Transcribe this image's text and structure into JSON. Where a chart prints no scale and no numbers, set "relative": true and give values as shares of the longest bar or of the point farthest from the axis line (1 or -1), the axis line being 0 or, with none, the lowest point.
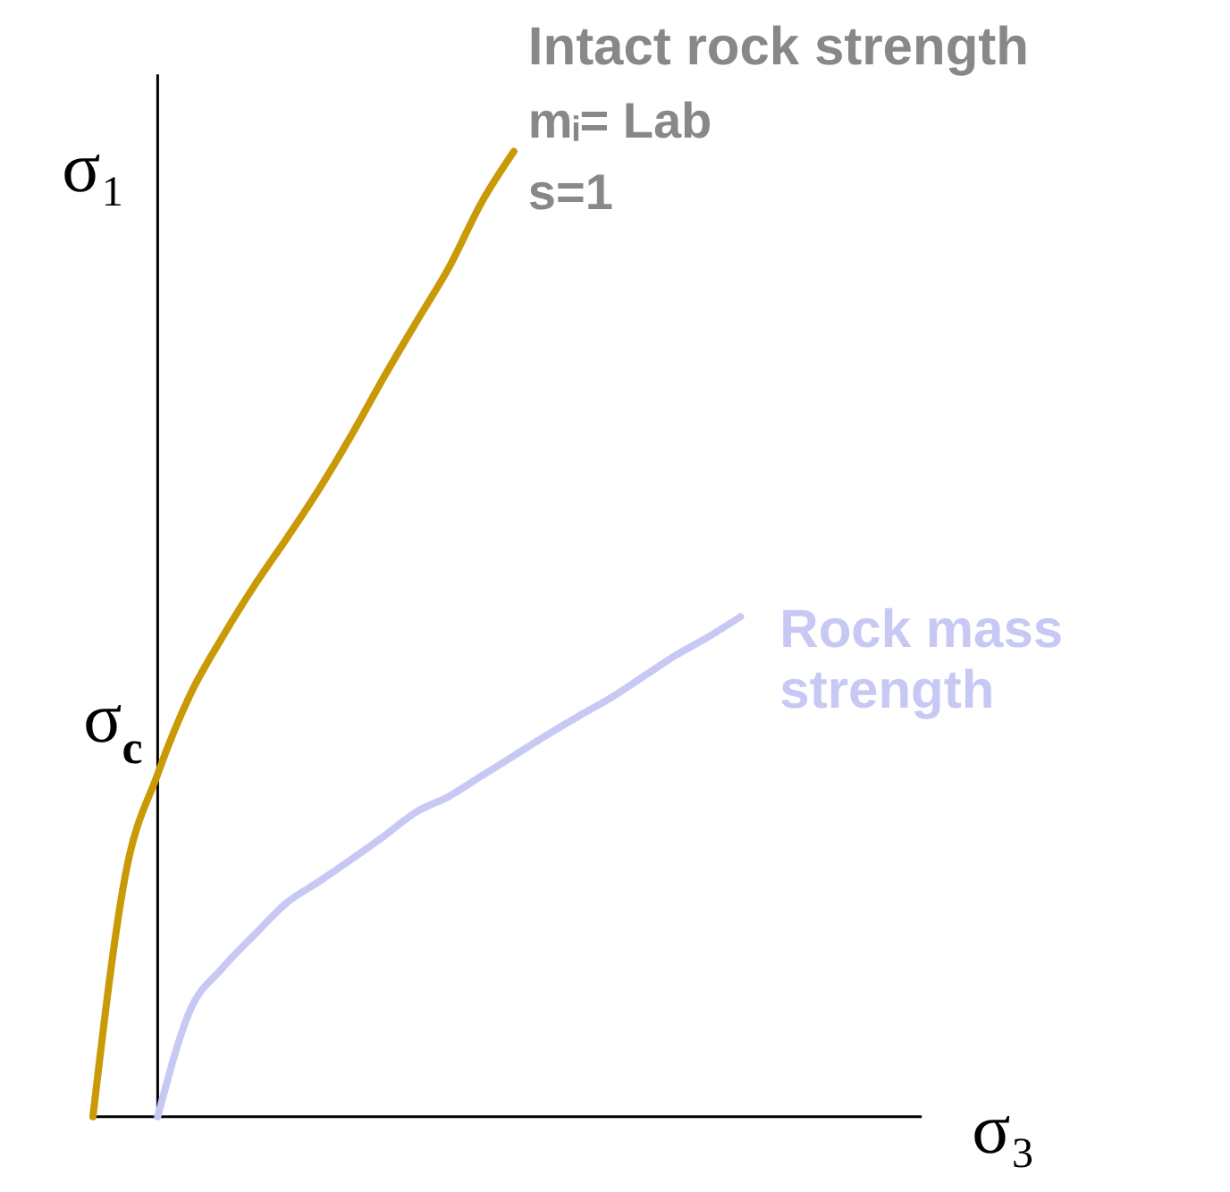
{
  "chart_data": {
    "type": "line",
    "relative": true,
    "xlabel": "σ₃",
    "ylabel": "σ₁",
    "marker": "none",
    "line_style": "solid",
    "categories": [
      null,
      null,
      null,
      null,
      null,
      null,
      null,
      null,
      null,
      null,
      null,
      null,
      null,
      null,
      null,
      null,
      null,
      null,
      null,
      null,
      null
    ],
    "series": [
      {
        "name": "Intact rock strength",
        "color": "#c99a06",
        "values": [
          0,
          0.25,
          0.355,
          0.437,
          0.497,
          0.551,
          0.6,
          0.651,
          0.707,
          0.767,
          0.824,
          0.88,
          0.947,
          1.0,
          null,
          null,
          null,
          null,
          null,
          null,
          null
        ]
      },
      {
        "name": "Rock mass strength",
        "color": "#c8c8f5",
        "values": [
          null,
          null,
          0,
          0.11,
          0.154,
          0.189,
          0.222,
          0.244,
          0.267,
          0.291,
          0.316,
          0.332,
          0.353,
          0.374,
          0.395,
          0.415,
          0.434,
          0.456,
          0.478,
          0.497,
          0.518
        ]
      }
    ],
    "annotations": [
      "σc",
      "mᵢ= Lab",
      "s=1"
    ]
  }
}
